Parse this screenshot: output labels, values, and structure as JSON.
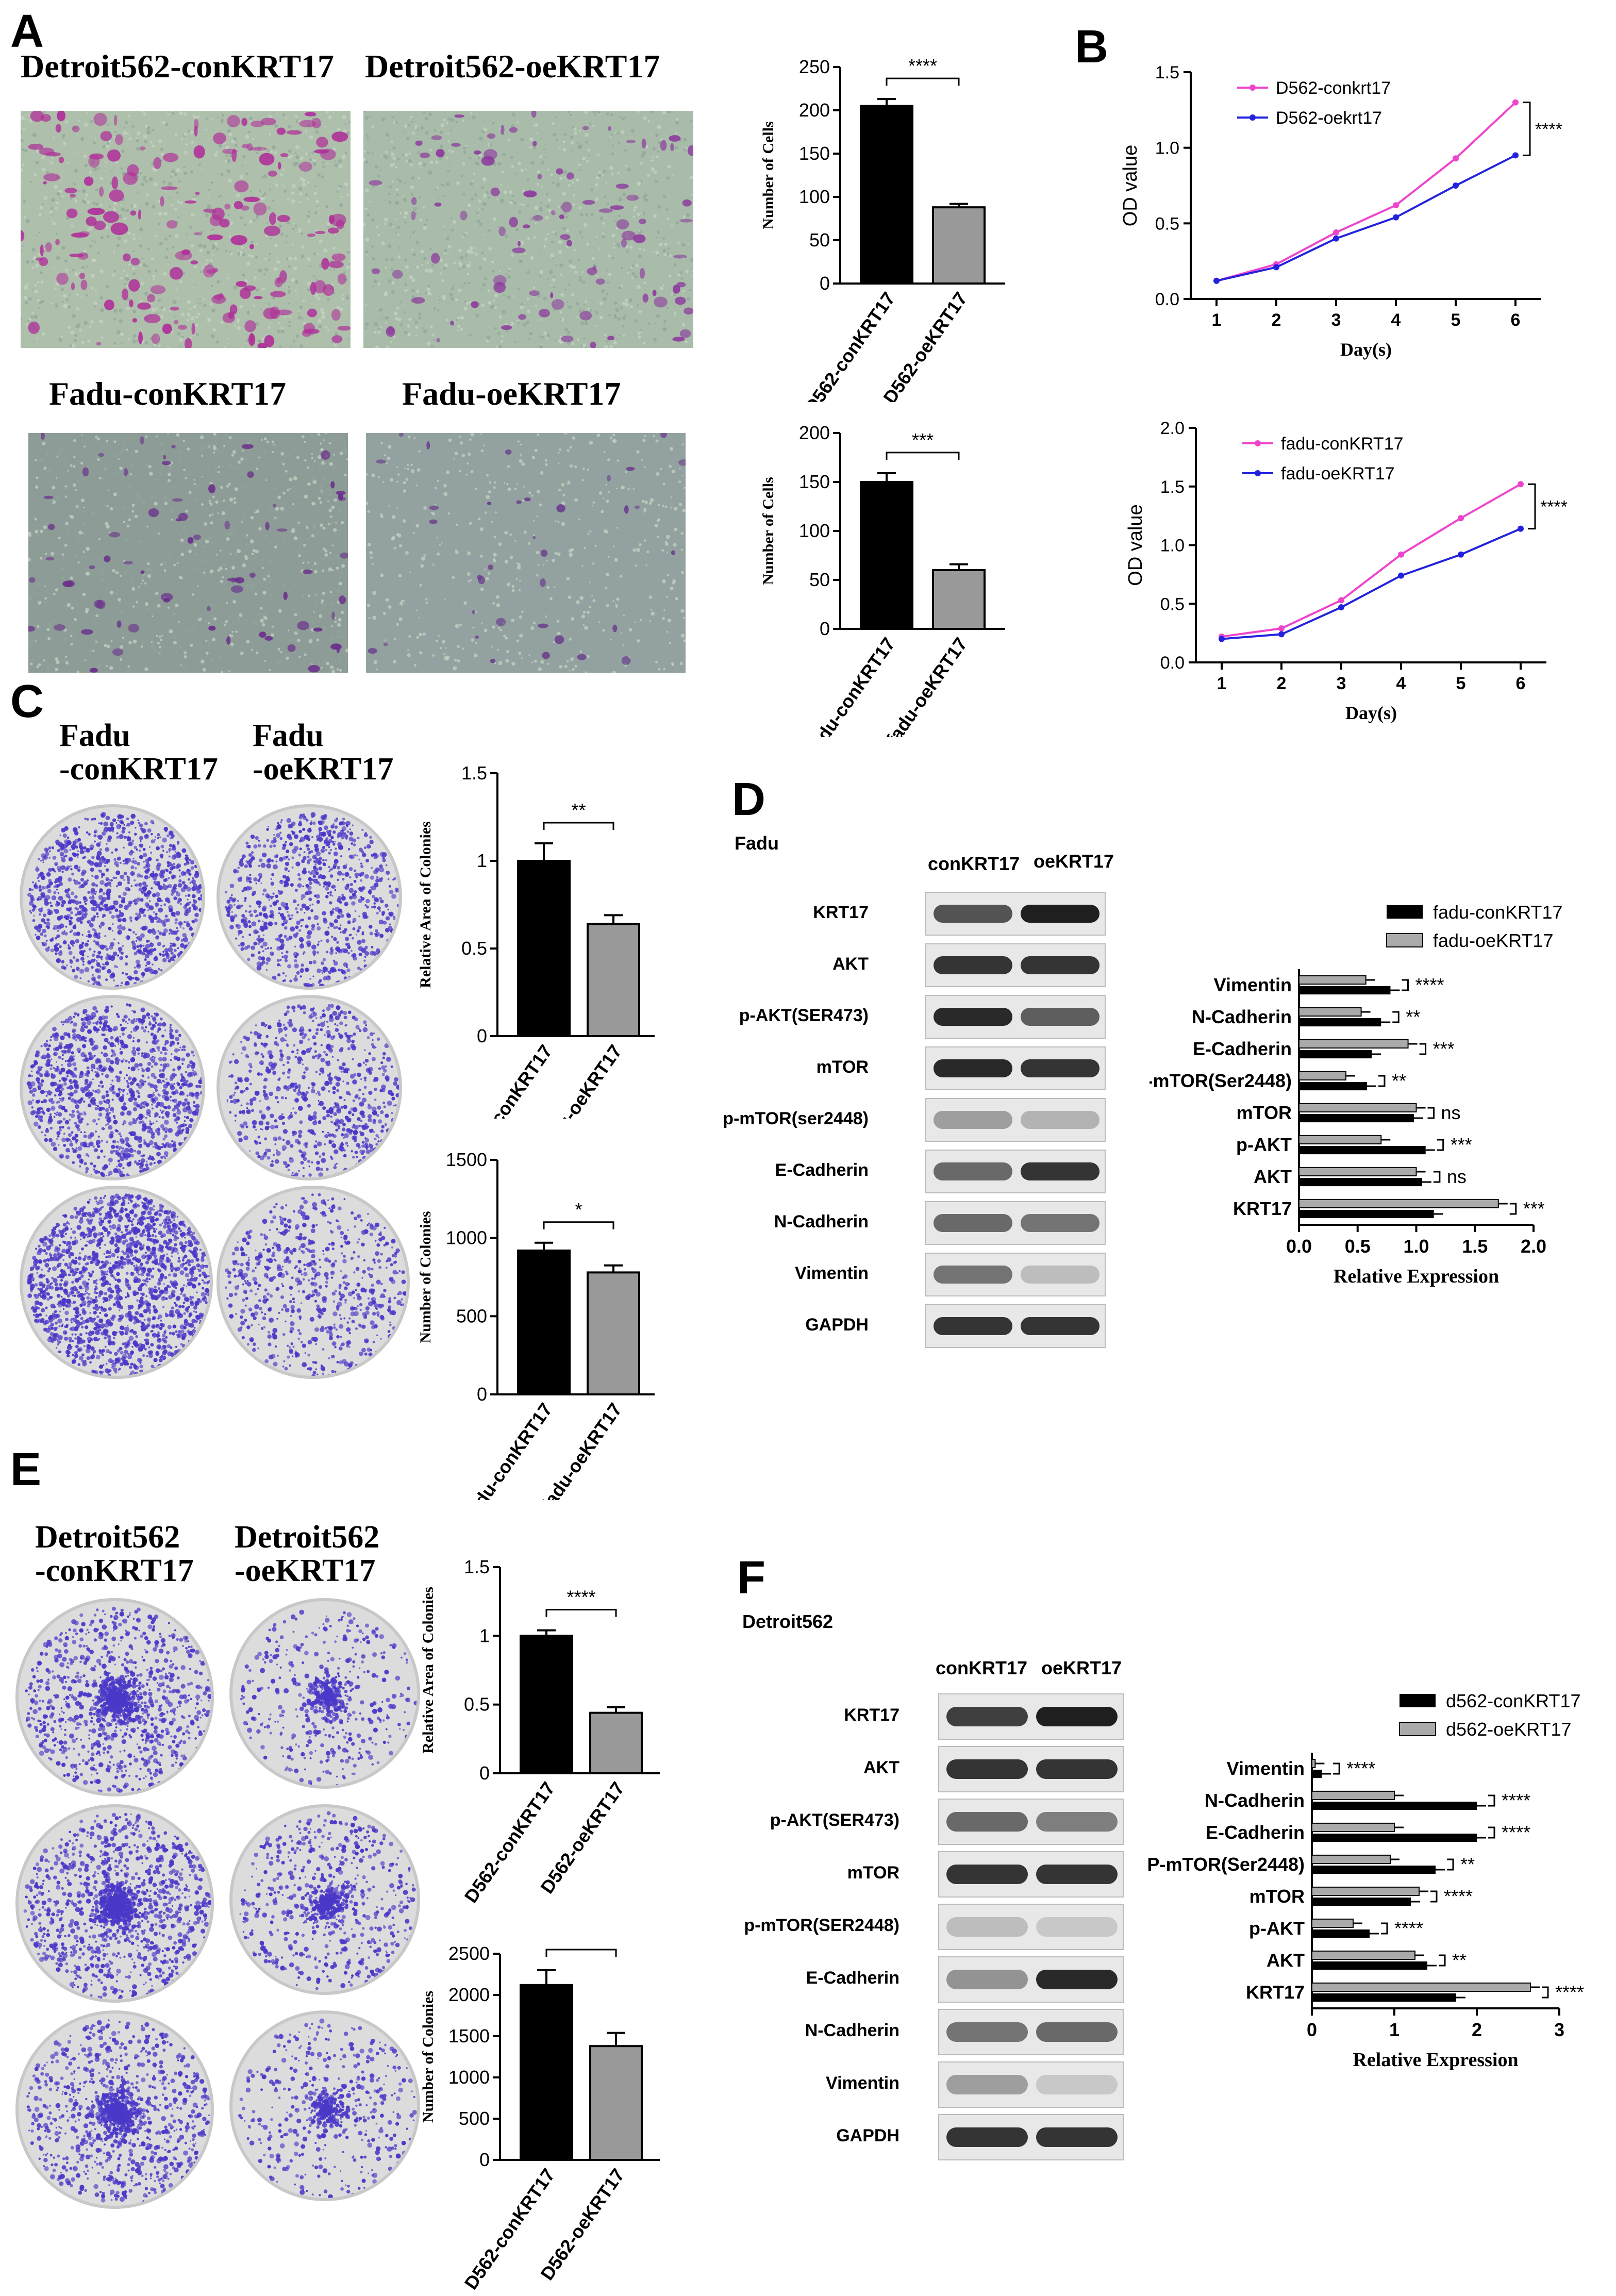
{
  "panels": {
    "A": {
      "label": "A",
      "titles": [
        "Detroit562-conKRT17",
        "Detroit562-oeKRT17",
        "Fadu-conKRT17",
        "Fadu-oeKRT17"
      ]
    },
    "B": {
      "label": "B"
    },
    "C": {
      "label": "C",
      "titles": [
        "Fadu\n-conKRT17",
        "Fadu\n-oeKRT17"
      ]
    },
    "D": {
      "label": "D",
      "group": "Fadu",
      "lanes": [
        "conKRT17",
        "oeKRT17"
      ],
      "blots": [
        "KRT17",
        "AKT",
        "p-AKT(SER473)",
        "mTOR",
        "p-mTOR(ser2448)",
        "E-Cadherin",
        "N-Cadherin",
        "Vimentin",
        "GAPDH"
      ]
    },
    "E": {
      "label": "E",
      "titles": [
        "Detroit562\n-conKRT17",
        "Detroit562\n-oeKRT17"
      ]
    },
    "F": {
      "label": "F",
      "group": "Detroit562",
      "lanes": [
        "conKRT17",
        "oeKRT17"
      ],
      "blots": [
        "KRT17",
        "AKT",
        "p-AKT(SER473)",
        "mTOR",
        "p-mTOR(SER2448)",
        "E-Cadherin",
        "N-Cadherin",
        "Vimentin",
        "GAPDH"
      ]
    }
  },
  "colors": {
    "black_bar": "#000000",
    "grey_bar": "#999999",
    "pink_line": "#ee44cc",
    "blue_line": "#2222dd",
    "stain_purple": "#b0309a",
    "stain_blue": "#4a38c8"
  },
  "chart_data": [
    {
      "id": "A1",
      "type": "bar",
      "categories": [
        "D562-conKRT17",
        "D562-oeKRT17"
      ],
      "values": [
        205,
        88
      ],
      "errors": [
        8,
        4
      ],
      "ylabel": "Number of Cells",
      "ylim": [
        0,
        250
      ],
      "yticks": [
        0,
        50,
        100,
        150,
        200,
        250
      ],
      "significance": "****",
      "colors": [
        "#000000",
        "#999999"
      ]
    },
    {
      "id": "A2",
      "type": "bar",
      "categories": [
        "fadu-conKRT17",
        "fadu-oeKRT17"
      ],
      "values": [
        150,
        60
      ],
      "errors": [
        9,
        6
      ],
      "ylabel": "Number of Cells",
      "ylim": [
        0,
        200
      ],
      "yticks": [
        0,
        50,
        100,
        150,
        200
      ],
      "significance": "***",
      "colors": [
        "#000000",
        "#999999"
      ]
    },
    {
      "id": "B1",
      "type": "line",
      "x": [
        1,
        2,
        3,
        4,
        5,
        6
      ],
      "series": [
        {
          "name": "D562-conkrt17",
          "values": [
            0.12,
            0.23,
            0.44,
            0.62,
            0.93,
            1.3
          ],
          "color": "#ee44cc"
        },
        {
          "name": "D562-oekrt17",
          "values": [
            0.12,
            0.21,
            0.4,
            0.54,
            0.75,
            0.95
          ],
          "color": "#2222dd"
        }
      ],
      "xlabel": "Day(s)",
      "ylabel": "OD value",
      "ylim": [
        0,
        1.5
      ],
      "yticks": [
        0.0,
        0.5,
        1.0,
        1.5
      ],
      "significance": "****",
      "legend": "top-left"
    },
    {
      "id": "B2",
      "type": "line",
      "x": [
        1,
        2,
        3,
        4,
        5,
        6
      ],
      "series": [
        {
          "name": "fadu-conKRT17",
          "values": [
            0.22,
            0.29,
            0.53,
            0.92,
            1.23,
            1.52
          ],
          "color": "#ee44cc"
        },
        {
          "name": "fadu-oeKRT17",
          "values": [
            0.2,
            0.24,
            0.47,
            0.74,
            0.92,
            1.14
          ],
          "color": "#2222dd"
        }
      ],
      "xlabel": "Day(s)",
      "ylabel": "OD value",
      "ylim": [
        0,
        2.0
      ],
      "yticks": [
        0.0,
        0.5,
        1.0,
        1.5,
        2.0
      ],
      "significance": "****",
      "legend": "top-left"
    },
    {
      "id": "C1",
      "type": "bar",
      "categories": [
        "fadu-conKRT17",
        "fadu-oeKRT17"
      ],
      "values": [
        1.0,
        0.64
      ],
      "errors": [
        0.1,
        0.05
      ],
      "ylabel": "Relative Area of Colonies",
      "ylim": [
        0,
        1.5
      ],
      "yticks": [
        0.0,
        0.5,
        1.0,
        1.5
      ],
      "significance": "**",
      "colors": [
        "#000000",
        "#999999"
      ]
    },
    {
      "id": "C2",
      "type": "bar",
      "categories": [
        "fadu-conKRT17",
        "fadu-oeKRT17"
      ],
      "values": [
        920,
        780
      ],
      "errors": [
        50,
        45
      ],
      "ylabel": "Number of Colonies",
      "ylim": [
        0,
        1500
      ],
      "yticks": [
        0,
        500,
        1000,
        1500
      ],
      "significance": "*",
      "colors": [
        "#000000",
        "#999999"
      ]
    },
    {
      "id": "D1",
      "type": "bar",
      "orientation": "horizontal",
      "categories": [
        "Vimentin",
        "N-Cadherin",
        "E-Cadherin",
        "P-mTOR(Ser2448)",
        "mTOR",
        "p-AKT",
        "AKT",
        "KRT17"
      ],
      "series": [
        {
          "name": "fadu-conKRT17",
          "values": [
            0.78,
            0.7,
            0.62,
            0.58,
            0.98,
            1.08,
            1.05,
            1.15
          ],
          "color": "#000000"
        },
        {
          "name": "fadu-oeKRT17",
          "values": [
            0.57,
            0.53,
            0.93,
            0.4,
            1.0,
            0.7,
            1.0,
            1.7
          ],
          "color": "#aaaaaa"
        }
      ],
      "significance": [
        "****",
        "**",
        "***",
        "**",
        "ns",
        "***",
        "ns",
        "***"
      ],
      "xlabel": "Relative Expression",
      "xlim": [
        0,
        2.0
      ],
      "xticks": [
        0.0,
        0.5,
        1.0,
        1.5,
        2.0
      ],
      "legend": "top-right"
    },
    {
      "id": "E1",
      "type": "bar",
      "categories": [
        "D562-conKRT17",
        "D562-oeKRT17"
      ],
      "values": [
        1.0,
        0.44
      ],
      "errors": [
        0.04,
        0.04
      ],
      "ylabel": "Relative Area of Colonies",
      "ylim": [
        0,
        1.5
      ],
      "yticks": [
        0.0,
        0.5,
        1.0,
        1.5
      ],
      "significance": "****",
      "colors": [
        "#000000",
        "#999999"
      ]
    },
    {
      "id": "E2",
      "type": "bar",
      "categories": [
        "D562-conKRT17",
        "D562-oeKRT17"
      ],
      "values": [
        2120,
        1380
      ],
      "errors": [
        180,
        160
      ],
      "ylabel": "Number of Colonies",
      "ylim": [
        0,
        2500
      ],
      "yticks": [
        0,
        500,
        1000,
        1500,
        2000,
        2500
      ],
      "significance": "**",
      "colors": [
        "#000000",
        "#999999"
      ]
    },
    {
      "id": "F1",
      "type": "bar",
      "orientation": "horizontal",
      "categories": [
        "Vimentin",
        "N-Cadherin",
        "E-Cadherin",
        "P-mTOR(Ser2448)",
        "mTOR",
        "p-AKT",
        "AKT",
        "KRT17"
      ],
      "series": [
        {
          "name": "d562-conKRT17",
          "values": [
            0.12,
            2.0,
            2.0,
            1.5,
            1.2,
            0.7,
            1.4,
            1.75
          ],
          "color": "#000000"
        },
        {
          "name": "d562-oeKRT17",
          "values": [
            0.04,
            1.0,
            1.0,
            0.95,
            1.3,
            0.5,
            1.25,
            2.65
          ],
          "color": "#aaaaaa"
        }
      ],
      "significance": [
        "****",
        "****",
        "****",
        "**",
        "****",
        "****",
        "**",
        "****"
      ],
      "xlabel": "Relative Expression",
      "xlim": [
        0,
        3
      ],
      "xticks": [
        0,
        1,
        2,
        3
      ],
      "legend": "top-right"
    }
  ]
}
